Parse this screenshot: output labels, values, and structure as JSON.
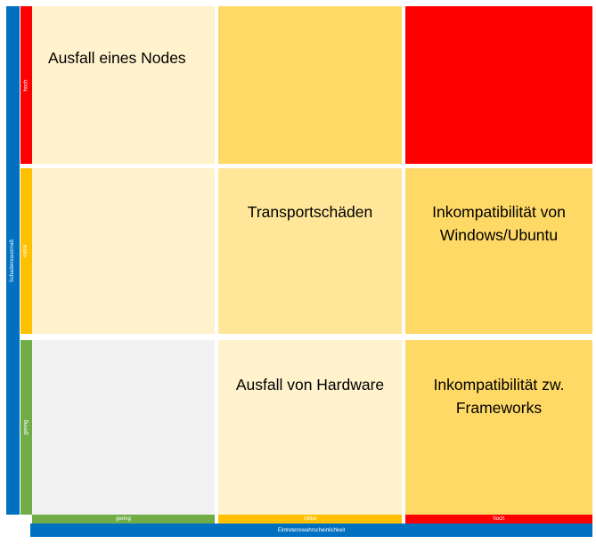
{
  "axes": {
    "vertical_title": "Schadensausmaß",
    "horizontal_title": "Eintretenswahrscheinlichkeit",
    "rows": [
      {
        "label": "hoch",
        "color": "#ff0000"
      },
      {
        "label": "mittel",
        "color": "#ffc000"
      },
      {
        "label": "gering",
        "color": "#70ad47"
      }
    ],
    "columns": [
      {
        "label": "gering",
        "color": "#70ad47"
      },
      {
        "label": "mittel",
        "color": "#ffc000"
      },
      {
        "label": "hoch",
        "color": "#ff0000"
      }
    ],
    "axis_color": "#0070c0"
  },
  "matrix": {
    "rows": [
      {
        "level": "hoch",
        "cells": [
          {
            "text": "Ausfall eines Nodes",
            "color": "#fff2cc"
          },
          {
            "text": "",
            "color": "#ffd966"
          },
          {
            "text": "",
            "color": "#ff0000"
          }
        ]
      },
      {
        "level": "mittel",
        "cells": [
          {
            "text": "",
            "color": "#fff2cc"
          },
          {
            "text": "Transportschäden",
            "color": "#ffe699"
          },
          {
            "text": "Inkompatibilität von Windows/Ubuntu",
            "color": "#ffd966"
          }
        ]
      },
      {
        "level": "gering",
        "cells": [
          {
            "text": "",
            "color": "#f2f2f2"
          },
          {
            "text": "Ausfall von Hardware",
            "color": "#fff2cc"
          },
          {
            "text": "Inkompatibilität zw. Frameworks",
            "color": "#ffd966"
          }
        ]
      }
    ]
  }
}
